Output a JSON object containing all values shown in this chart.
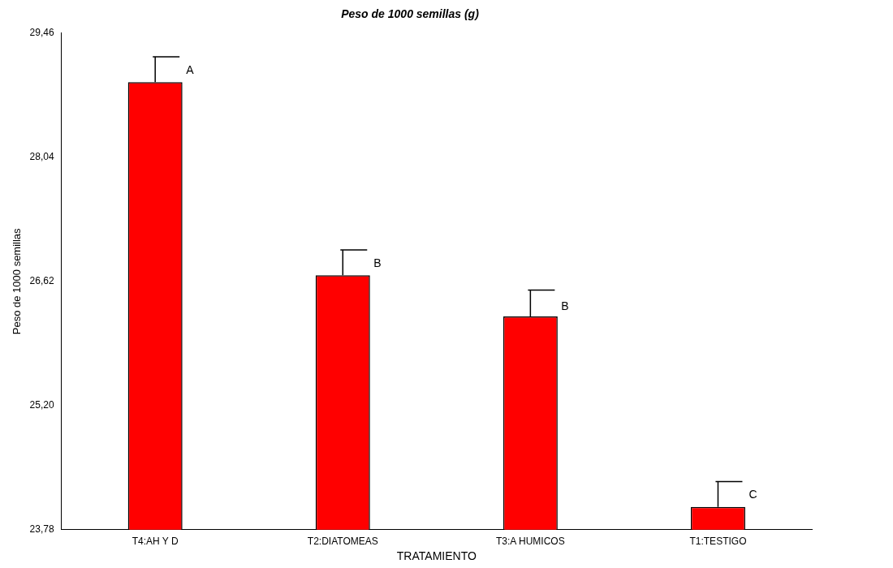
{
  "chart_data": {
    "type": "bar",
    "title": "Peso de 1000 semillas (g)",
    "xlabel": "TRATAMIENTO",
    "ylabel": "Peso de 1000 semillas",
    "categories": [
      "T4:AH Y D",
      "T2:DIATOMEAS",
      "T3:A HUMICOS",
      "T1:TESTIGO"
    ],
    "values": [
      28.9,
      26.69,
      26.22,
      24.04
    ],
    "errors": [
      [
        28.9,
        29.19
      ],
      [
        26.69,
        26.98
      ],
      [
        26.22,
        26.52
      ],
      [
        24.04,
        24.33
      ]
    ],
    "color": "#ff0000",
    "ylim": [
      23.78,
      29.46
    ],
    "yticks": [
      {
        "value": 23.78,
        "label": "23,78"
      },
      {
        "value": 25.2,
        "label": "25,20"
      },
      {
        "value": 26.62,
        "label": "26,62"
      },
      {
        "value": 28.04,
        "label": "28,04"
      },
      {
        "value": 29.46,
        "label": "29,46"
      }
    ],
    "annotations": [
      {
        "text": "A",
        "x": "T4:AH Y D",
        "y": 29.03
      },
      {
        "text": "B",
        "x": "T2:DIATOMEAS",
        "y": 26.82
      },
      {
        "text": "B",
        "x": "T3:A HUMICOS",
        "y": 26.33
      },
      {
        "text": "C",
        "x": "T1:TESTIGO",
        "y": 24.18
      }
    ],
    "grid": false,
    "legend": false
  }
}
